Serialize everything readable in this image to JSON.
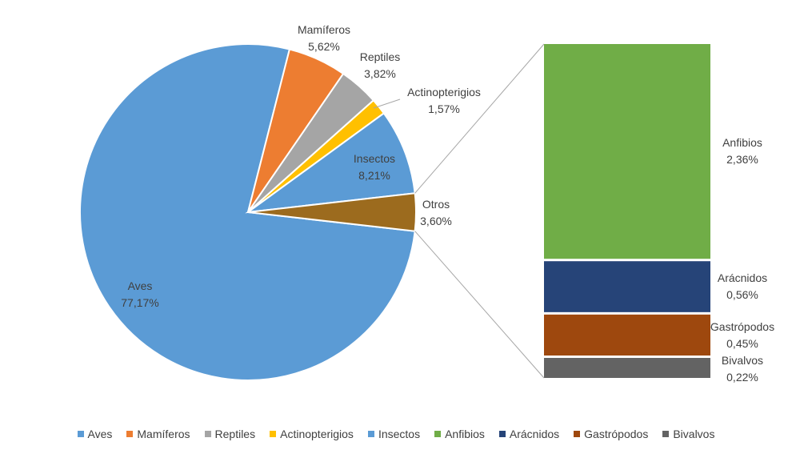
{
  "chart_data": {
    "type": "pie",
    "subtype": "bar-of-pie",
    "slices": [
      {
        "name": "Aves",
        "value": 77.17,
        "label": "77,17%",
        "color": "#5B9BD5"
      },
      {
        "name": "Mamíferos",
        "value": 5.62,
        "label": "5,62%",
        "color": "#ED7D31"
      },
      {
        "name": "Reptiles",
        "value": 3.82,
        "label": "3,82%",
        "color": "#A5A5A5"
      },
      {
        "name": "Actinopterigios",
        "value": 1.57,
        "label": "1,57%",
        "color": "#FFC000"
      },
      {
        "name": "Insectos",
        "value": 8.21,
        "label": "8,21%",
        "color": "#5B9BD5"
      },
      {
        "name": "Otros",
        "value": 3.6,
        "label": "3,60%",
        "color": "#9C6B1E"
      }
    ],
    "breakdown_of": "Otros",
    "bar_segments": [
      {
        "name": "Anfibios",
        "value": 2.36,
        "label": "2,36%",
        "color": "#70AD47"
      },
      {
        "name": "Arácnidos",
        "value": 0.56,
        "label": "0,56%",
        "color": "#264478"
      },
      {
        "name": "Gastrópodos",
        "value": 0.45,
        "label": "0,45%",
        "color": "#9E480E"
      },
      {
        "name": "Bivalvos",
        "value": 0.22,
        "label": "0,22%",
        "color": "#636363"
      }
    ],
    "legend": [
      {
        "name": "Aves",
        "color": "#5B9BD5"
      },
      {
        "name": "Mamíferos",
        "color": "#ED7D31"
      },
      {
        "name": "Reptiles",
        "color": "#A5A5A5"
      },
      {
        "name": "Actinopterigios",
        "color": "#FFC000"
      },
      {
        "name": "Insectos",
        "color": "#5B9BD5"
      },
      {
        "name": "Anfibios",
        "color": "#70AD47"
      },
      {
        "name": "Arácnidos",
        "color": "#264478"
      },
      {
        "name": "Gastrópodos",
        "color": "#9E480E"
      },
      {
        "name": "Bivalvos",
        "color": "#636363"
      }
    ],
    "legend_position": "bottom"
  }
}
